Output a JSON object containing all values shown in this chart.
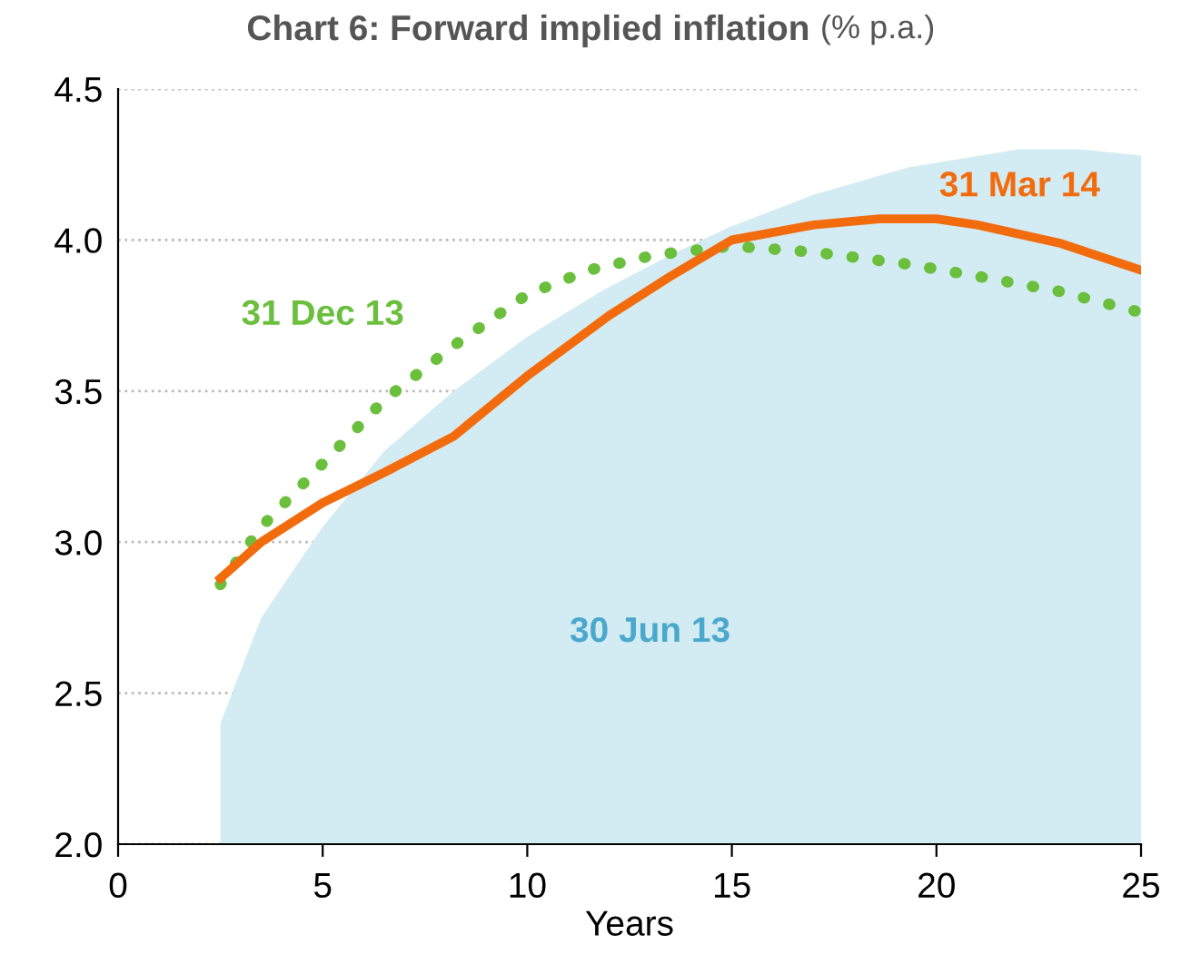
{
  "chart_data": {
    "type": "line",
    "title": "Chart 6: Forward implied inflation",
    "subtitle": "(% p.a.)",
    "xlabel": "Years",
    "xlim": [
      0,
      25
    ],
    "xticks": [
      0,
      5,
      10,
      15,
      20,
      25
    ],
    "ylim": [
      2.0,
      4.5
    ],
    "yticks": [
      {
        "value": 2.0,
        "label": "2.0"
      },
      {
        "value": 2.5,
        "label": "2.5"
      },
      {
        "value": 3.0,
        "label": "3.0"
      },
      {
        "value": 3.5,
        "label": "3.5"
      },
      {
        "value": 4.0,
        "label": "4.0"
      },
      {
        "value": 4.5,
        "label": "4.5"
      }
    ],
    "grid": "y",
    "legend": false,
    "series": [
      {
        "name": "30 Jun 13",
        "type": "area",
        "color": "#d3ebf3",
        "x": [
          2.5,
          3.5,
          5,
          6.5,
          8.2,
          10,
          11.8,
          13.5,
          14.9,
          17,
          19.3,
          22,
          23.5,
          25
        ],
        "values": [
          2.4,
          2.75,
          3.05,
          3.3,
          3.5,
          3.68,
          3.83,
          3.95,
          4.04,
          4.15,
          4.24,
          4.3,
          4.3,
          4.28
        ]
      },
      {
        "name": "31 Dec 13",
        "line_style": "dotted",
        "color": "#6abf3d",
        "x": [
          2.5,
          3.5,
          5,
          6.5,
          8.2,
          10,
          11.5,
          13.1,
          15,
          17,
          19.3,
          21,
          23,
          25
        ],
        "values": [
          2.86,
          3.05,
          3.26,
          3.47,
          3.65,
          3.82,
          3.9,
          3.95,
          3.98,
          3.96,
          3.92,
          3.88,
          3.83,
          3.76
        ]
      },
      {
        "name": "31 Mar 14",
        "line_style": "solid",
        "color": "#f26c0d",
        "x": [
          2.5,
          3.5,
          5,
          6.5,
          8.2,
          10,
          12,
          13.5,
          15,
          17,
          18.6,
          20,
          21,
          23,
          25
        ],
        "values": [
          2.88,
          3.0,
          3.13,
          3.23,
          3.35,
          3.55,
          3.75,
          3.88,
          4.0,
          4.05,
          4.07,
          4.07,
          4.05,
          3.99,
          3.9
        ]
      }
    ]
  }
}
